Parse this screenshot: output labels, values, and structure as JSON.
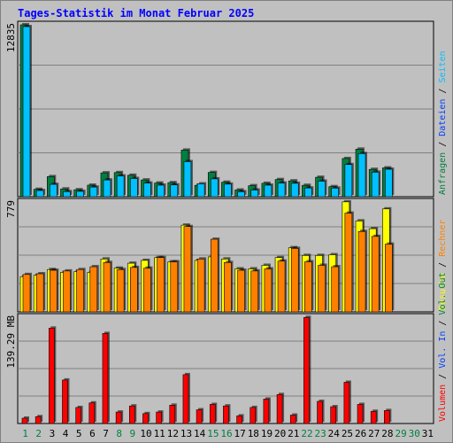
{
  "title": "Tages-Statistik im Monat Februar 2025",
  "colors": {
    "panel_bg": "#c0c0c0",
    "anfragen": "#008040",
    "dateien": "#00c0ff",
    "seiten": "#00c0ff",
    "besuche": "#ffff00",
    "rechner": "#ff8000",
    "volumen": "#ff0000",
    "weekday": "#000000",
    "weekend": "#008040"
  },
  "chart_data": [
    {
      "type": "bar",
      "panel": "hits",
      "max_label": "12835",
      "ymax": 12835,
      "categories": [
        "1",
        "2",
        "3",
        "4",
        "5",
        "6",
        "7",
        "8",
        "9",
        "10",
        "11",
        "12",
        "13",
        "14",
        "15",
        "16",
        "17",
        "18",
        "19",
        "20",
        "21",
        "22",
        "23",
        "24",
        "25",
        "26",
        "27",
        "28",
        "29",
        "30",
        "31"
      ],
      "weekend_days": [
        "1",
        "2",
        "8",
        "9",
        "15",
        "16",
        "22",
        "23",
        "29",
        "30"
      ],
      "legend": [
        {
          "label": "Anfragen",
          "color": "#008040"
        },
        {
          "label": "Dateien",
          "color": "#0040ff"
        },
        {
          "label": "Seiten",
          "color": "#00c0ff"
        }
      ],
      "series": [
        {
          "name": "Anfragen",
          "values": [
            12835,
            550,
            1500,
            580,
            520,
            860,
            1780,
            1800,
            1600,
            1250,
            1020,
            1050,
            3480,
            850,
            1810,
            1080,
            500,
            820,
            1000,
            1280,
            1180,
            850,
            1450,
            750,
            2850,
            3550,
            2040,
            2150,
            null,
            null,
            null
          ]
        },
        {
          "name": "Dateien",
          "values": [
            12700,
            460,
            920,
            380,
            400,
            720,
            1250,
            1550,
            1360,
            1020,
            860,
            880,
            2620,
            960,
            1330,
            940,
            370,
            500,
            860,
            1020,
            1000,
            650,
            1160,
            640,
            2400,
            3220,
            1830,
            2050,
            null,
            null,
            null
          ]
        }
      ]
    },
    {
      "type": "bar",
      "panel": "visits",
      "max_label": "779",
      "ymax": 779,
      "categories": [
        "1",
        "2",
        "3",
        "4",
        "5",
        "6",
        "7",
        "8",
        "9",
        "10",
        "11",
        "12",
        "13",
        "14",
        "15",
        "16",
        "17",
        "18",
        "19",
        "20",
        "21",
        "22",
        "23",
        "24",
        "25",
        "26",
        "27",
        "28",
        "29",
        "30",
        "31"
      ],
      "legend": [
        {
          "label": "Besuche",
          "color": "#ffff00"
        },
        {
          "label": "Rechner",
          "color": "#ff8000"
        }
      ],
      "series": [
        {
          "name": "Besuche",
          "values": [
            250,
            260,
            300,
            280,
            285,
            280,
            375,
            310,
            345,
            365,
            385,
            355,
            615,
            365,
            390,
            375,
            305,
            305,
            330,
            385,
            455,
            400,
            400,
            405,
            780,
            645,
            590,
            730,
            null,
            null,
            null
          ]
        },
        {
          "name": "Rechner",
          "values": [
            265,
            270,
            295,
            290,
            300,
            320,
            350,
            300,
            315,
            310,
            385,
            355,
            605,
            375,
            515,
            350,
            295,
            290,
            305,
            360,
            450,
            355,
            330,
            320,
            700,
            570,
            535,
            480,
            null,
            null,
            null
          ]
        }
      ]
    },
    {
      "type": "bar",
      "panel": "volume",
      "max_label": "139.29 MB",
      "ymax": 139.29,
      "categories": [
        "1",
        "2",
        "3",
        "4",
        "5",
        "6",
        "7",
        "8",
        "9",
        "10",
        "11",
        "12",
        "13",
        "14",
        "15",
        "16",
        "17",
        "18",
        "19",
        "20",
        "21",
        "22",
        "23",
        "24",
        "25",
        "26",
        "27",
        "28",
        "29",
        "30",
        "31"
      ],
      "legend": [
        {
          "label": "Volumen",
          "color": "#ff0000"
        },
        {
          "label": "Vol. In",
          "color": "#0040ff"
        },
        {
          "label": "Vol. Out",
          "color": "#008040"
        }
      ],
      "series": [
        {
          "name": "Volumen",
          "values": [
            7,
            9,
            125,
            57,
            21,
            27,
            118,
            15,
            23,
            13,
            15,
            24,
            64,
            18,
            25,
            23,
            10,
            21,
            32,
            38,
            11,
            139,
            29,
            22,
            54,
            25,
            16,
            17,
            null,
            null,
            null
          ]
        }
      ]
    }
  ]
}
